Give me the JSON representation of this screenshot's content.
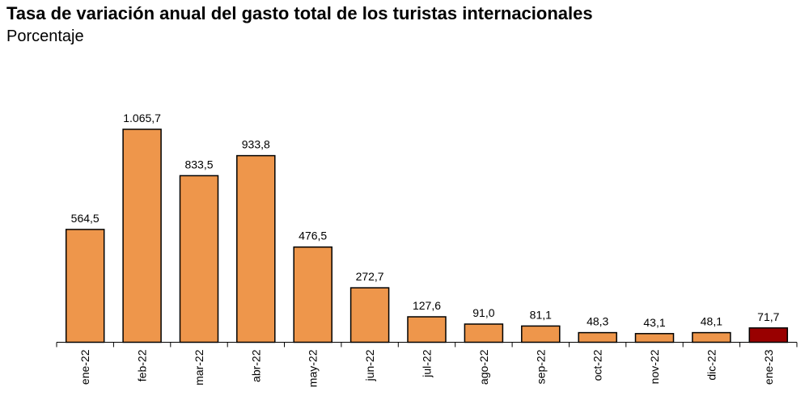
{
  "chart_data": {
    "type": "bar",
    "title": "Tasa de variación anual del gasto total de los turistas internacionales",
    "subtitle": "Porcentaje",
    "categories": [
      "ene-22",
      "feb-22",
      "mar-22",
      "abr-22",
      "may-22",
      "jun-22",
      "jul-22",
      "ago-22",
      "sep-22",
      "oct-22",
      "nov-22",
      "dic-22",
      "ene-23"
    ],
    "values": [
      564.5,
      1065.7,
      833.5,
      933.8,
      476.5,
      272.7,
      127.6,
      91.0,
      81.1,
      48.3,
      43.1,
      48.1,
      71.7
    ],
    "value_labels": [
      "564,5",
      "1.065,7",
      "833,5",
      "933,8",
      "476,5",
      "272,7",
      "127,6",
      "91,0",
      "81,1",
      "48,3",
      "43,1",
      "48,1",
      "71,7"
    ],
    "ylim": [
      0,
      1065.7
    ],
    "grid": false,
    "legend": "none",
    "colors": {
      "bar": "#EE964B",
      "highlight": "#990000",
      "outline": "#000000"
    },
    "highlight_index": 12
  }
}
